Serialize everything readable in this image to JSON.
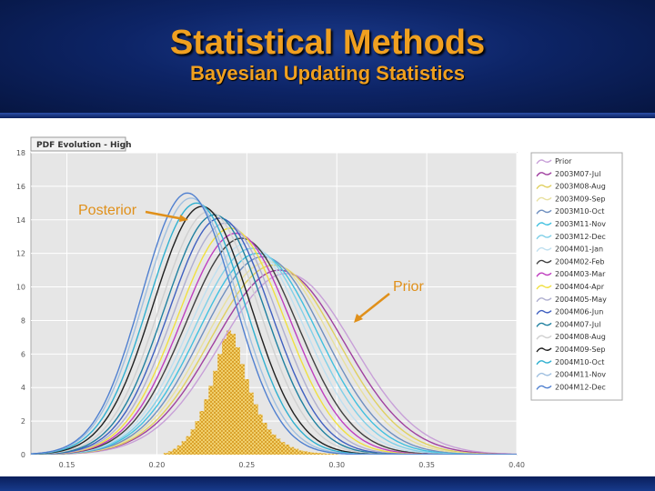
{
  "slide": {
    "title": "Statistical Methods",
    "subtitle": "Bayesian Updating Statistics"
  },
  "colors": {
    "title": "#f0a020",
    "annotation": "#e0901a",
    "histogram": "#e8b030",
    "plot_background": "#e6e6e6"
  },
  "chart_data": {
    "type": "line",
    "panel_title": "PDF Evolution - High",
    "xlim": [
      0.13,
      0.4
    ],
    "ylim": [
      0,
      18
    ],
    "x_ticks": [
      "0.15",
      "0.20",
      "0.25",
      "0.30",
      "0.35",
      "0.40"
    ],
    "y_ticks": [
      "0",
      "2",
      "4",
      "6",
      "8",
      "10",
      "12",
      "14",
      "16",
      "18"
    ],
    "grid": true,
    "legend_position": "right",
    "annotations": [
      {
        "text": "Posterior",
        "target": "2004M12-Dec"
      },
      {
        "text": "Prior",
        "target": "Prior"
      }
    ],
    "histogram": {
      "bin_width": 0.0025,
      "bins": [
        {
          "x": 0.205,
          "y": 0.1
        },
        {
          "x": 0.2075,
          "y": 0.2
        },
        {
          "x": 0.21,
          "y": 0.35
        },
        {
          "x": 0.2125,
          "y": 0.55
        },
        {
          "x": 0.215,
          "y": 0.8
        },
        {
          "x": 0.2175,
          "y": 1.1
        },
        {
          "x": 0.22,
          "y": 1.5
        },
        {
          "x": 0.2225,
          "y": 2.0
        },
        {
          "x": 0.225,
          "y": 2.6
        },
        {
          "x": 0.2275,
          "y": 3.3
        },
        {
          "x": 0.23,
          "y": 4.1
        },
        {
          "x": 0.2325,
          "y": 5.0
        },
        {
          "x": 0.235,
          "y": 6.0
        },
        {
          "x": 0.2375,
          "y": 6.9
        },
        {
          "x": 0.24,
          "y": 7.4
        },
        {
          "x": 0.2425,
          "y": 7.2
        },
        {
          "x": 0.245,
          "y": 6.4
        },
        {
          "x": 0.2475,
          "y": 5.4
        },
        {
          "x": 0.25,
          "y": 4.5
        },
        {
          "x": 0.2525,
          "y": 3.7
        },
        {
          "x": 0.255,
          "y": 3.0
        },
        {
          "x": 0.2575,
          "y": 2.4
        },
        {
          "x": 0.26,
          "y": 1.9
        },
        {
          "x": 0.2625,
          "y": 1.5
        },
        {
          "x": 0.265,
          "y": 1.2
        },
        {
          "x": 0.2675,
          "y": 0.95
        },
        {
          "x": 0.27,
          "y": 0.75
        },
        {
          "x": 0.2725,
          "y": 0.6
        },
        {
          "x": 0.275,
          "y": 0.45
        },
        {
          "x": 0.2775,
          "y": 0.35
        },
        {
          "x": 0.28,
          "y": 0.25
        },
        {
          "x": 0.2825,
          "y": 0.2
        },
        {
          "x": 0.285,
          "y": 0.15
        },
        {
          "x": 0.2875,
          "y": 0.12
        },
        {
          "x": 0.29,
          "y": 0.1
        },
        {
          "x": 0.2925,
          "y": 0.08
        },
        {
          "x": 0.295,
          "y": 0.06
        },
        {
          "x": 0.2975,
          "y": 0.05
        },
        {
          "x": 0.3,
          "y": 0.04
        }
      ]
    },
    "series": [
      {
        "name": "Prior",
        "color": "#c8a0d8",
        "mean": 0.272,
        "peak": 10.8
      },
      {
        "name": "2003M07-Jul",
        "color": "#a040a0",
        "mean": 0.268,
        "peak": 11.0
      },
      {
        "name": "2003M08-Aug",
        "color": "#e0d060",
        "mean": 0.265,
        "peak": 11.3
      },
      {
        "name": "2003M09-Sep",
        "color": "#e8e0a0",
        "mean": 0.262,
        "peak": 11.5
      },
      {
        "name": "2003M10-Oct",
        "color": "#7090c0",
        "mean": 0.259,
        "peak": 11.8
      },
      {
        "name": "2003M11-Nov",
        "color": "#40c0e0",
        "mean": 0.256,
        "peak": 12.0
      },
      {
        "name": "2003M12-Dec",
        "color": "#80d0e8",
        "mean": 0.253,
        "peak": 12.3
      },
      {
        "name": "2004M01-Jan",
        "color": "#c0e0f0",
        "mean": 0.25,
        "peak": 12.6
      },
      {
        "name": "2004M02-Feb",
        "color": "#404040",
        "mean": 0.247,
        "peak": 12.9
      },
      {
        "name": "2004M03-Mar",
        "color": "#c040c0",
        "mean": 0.244,
        "peak": 13.2
      },
      {
        "name": "2004M04-Apr",
        "color": "#f0e040",
        "mean": 0.241,
        "peak": 13.5
      },
      {
        "name": "2004M05-May",
        "color": "#b0b0d0",
        "mean": 0.238,
        "peak": 13.8
      },
      {
        "name": "2004M06-Jun",
        "color": "#4060c0",
        "mean": 0.235,
        "peak": 14.1
      },
      {
        "name": "2004M07-Jul",
        "color": "#2080a0",
        "mean": 0.232,
        "peak": 14.3
      },
      {
        "name": "2004M08-Aug",
        "color": "#d0d0d0",
        "mean": 0.229,
        "peak": 14.5
      },
      {
        "name": "2004M09-Sep",
        "color": "#202020",
        "mean": 0.225,
        "peak": 14.8
      },
      {
        "name": "2004M10-Oct",
        "color": "#30b0d0",
        "mean": 0.222,
        "peak": 15.0
      },
      {
        "name": "2004M11-Nov",
        "color": "#a0c0e0",
        "mean": 0.219,
        "peak": 15.3
      },
      {
        "name": "2004M12-Dec",
        "color": "#5080d0",
        "mean": 0.217,
        "peak": 15.6
      }
    ]
  }
}
